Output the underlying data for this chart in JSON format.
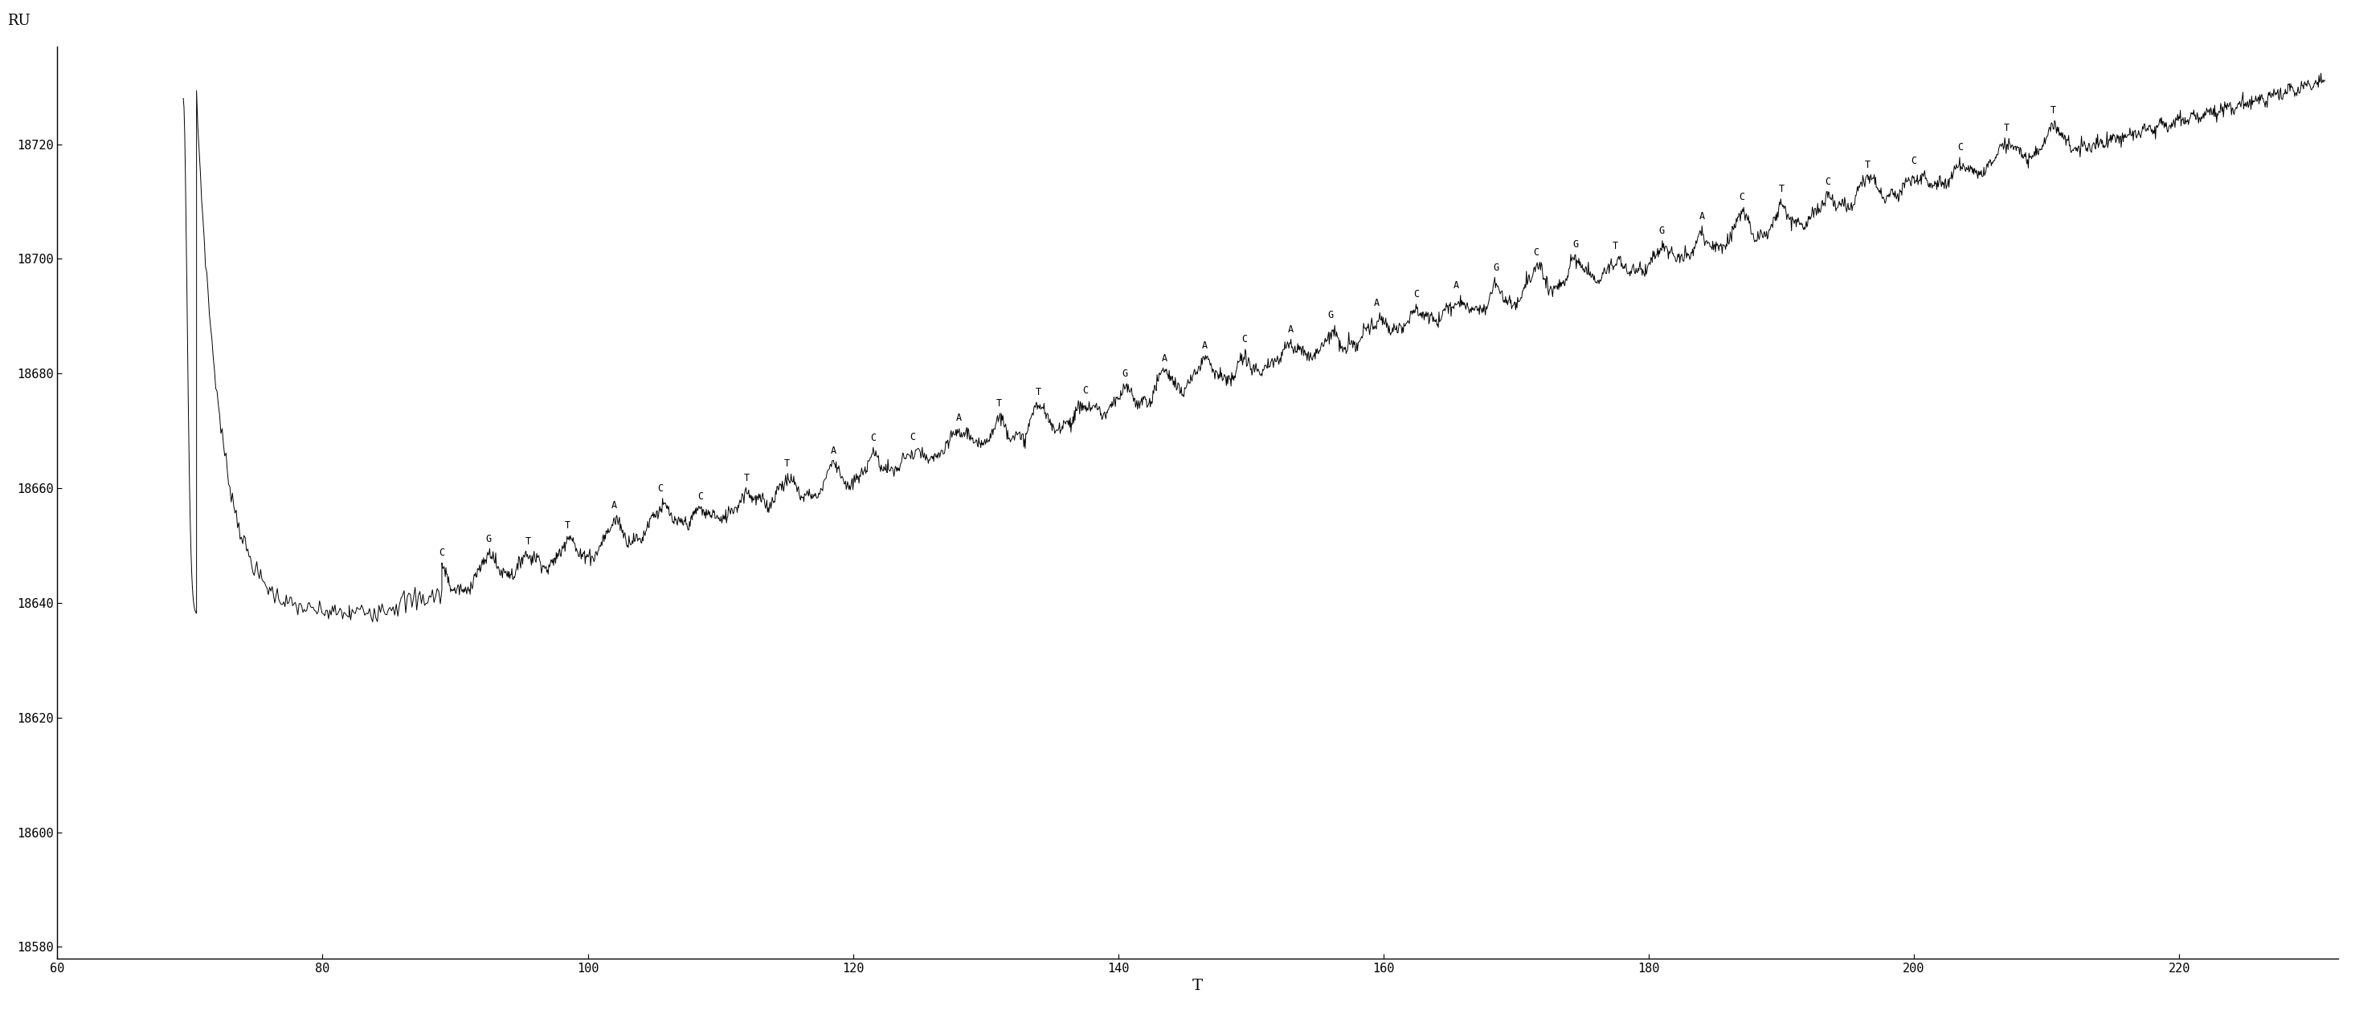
{
  "xlabel": "T",
  "ylabel": "RU",
  "xlim": [
    60,
    232
  ],
  "ylim": [
    18578,
    18737
  ],
  "xticks": [
    60,
    80,
    100,
    120,
    140,
    160,
    180,
    200,
    220
  ],
  "yticks": [
    18580,
    18600,
    18620,
    18640,
    18660,
    18680,
    18700,
    18720
  ],
  "background_color": "#ffffff",
  "line_color": "#000000",
  "sequence_annotations": [
    {
      "t": 89.0,
      "letter": "C"
    },
    {
      "t": 92.5,
      "letter": "G"
    },
    {
      "t": 95.5,
      "letter": "T"
    },
    {
      "t": 98.5,
      "letter": "T"
    },
    {
      "t": 102.0,
      "letter": "A"
    },
    {
      "t": 105.5,
      "letter": "C"
    },
    {
      "t": 108.5,
      "letter": "C"
    },
    {
      "t": 112.0,
      "letter": "T"
    },
    {
      "t": 115.0,
      "letter": "T"
    },
    {
      "t": 118.5,
      "letter": "A"
    },
    {
      "t": 121.5,
      "letter": "C"
    },
    {
      "t": 124.5,
      "letter": "C"
    },
    {
      "t": 128.0,
      "letter": "A"
    },
    {
      "t": 131.0,
      "letter": "T"
    },
    {
      "t": 134.0,
      "letter": "T"
    },
    {
      "t": 137.5,
      "letter": "C"
    },
    {
      "t": 140.5,
      "letter": "G"
    },
    {
      "t": 143.5,
      "letter": "A"
    },
    {
      "t": 146.5,
      "letter": "A"
    },
    {
      "t": 149.5,
      "letter": "C"
    },
    {
      "t": 153.0,
      "letter": "A"
    },
    {
      "t": 156.0,
      "letter": "G"
    },
    {
      "t": 159.5,
      "letter": "A"
    },
    {
      "t": 162.5,
      "letter": "C"
    },
    {
      "t": 165.5,
      "letter": "A"
    },
    {
      "t": 168.5,
      "letter": "G"
    },
    {
      "t": 171.5,
      "letter": "C"
    },
    {
      "t": 174.5,
      "letter": "G"
    },
    {
      "t": 177.5,
      "letter": "T"
    },
    {
      "t": 181.0,
      "letter": "G"
    },
    {
      "t": 184.0,
      "letter": "A"
    },
    {
      "t": 187.0,
      "letter": "C"
    },
    {
      "t": 190.0,
      "letter": "T"
    },
    {
      "t": 193.5,
      "letter": "C"
    },
    {
      "t": 196.5,
      "letter": "T"
    },
    {
      "t": 200.0,
      "letter": "C"
    },
    {
      "t": 203.5,
      "letter": "C"
    },
    {
      "t": 207.0,
      "letter": "T"
    },
    {
      "t": 210.5,
      "letter": "T"
    }
  ]
}
